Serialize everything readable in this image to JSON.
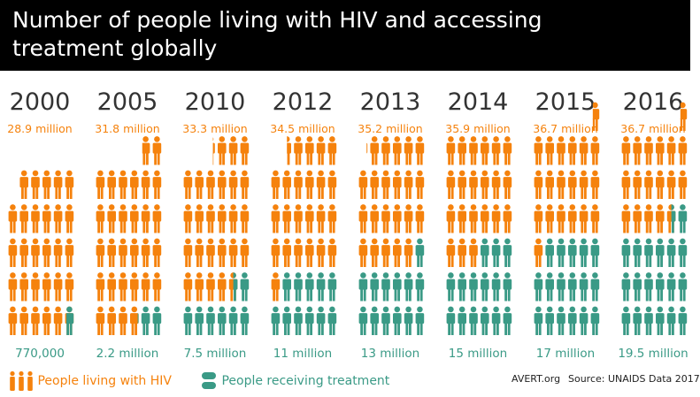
{
  "title": {
    "line1": "Number of people living with HIV and accessing",
    "line2": "treatment globally"
  },
  "chart_data": {
    "type": "pictograph",
    "categories": [
      "2000",
      "2005",
      "2010",
      "2012",
      "2013",
      "2014",
      "2015",
      "2016"
    ],
    "series": [
      {
        "name": "People living with HIV",
        "values": [
          28.9,
          31.8,
          33.3,
          34.5,
          35.2,
          35.9,
          36.7,
          36.7
        ],
        "labels": [
          "28.9 million",
          "31.8 million",
          "33.3 million",
          "34.5 million",
          "35.2 million",
          "35.9 million",
          "36.7 million",
          "36.7 million"
        ],
        "color": "#f5820d"
      },
      {
        "name": "People receiving treatment",
        "values": [
          0.77,
          2.2,
          7.5,
          11,
          13,
          15,
          17,
          19.5
        ],
        "labels": [
          "770,000",
          "2.2 million",
          "7.5 million",
          "11 million",
          "13 million",
          "15 million",
          "17 million",
          "19.5 million"
        ],
        "color": "#3a9a86"
      }
    ]
  },
  "legend": {
    "living": "People living with HIV",
    "treatment": "People receiving treatment"
  },
  "credits": {
    "site": "AVERT.org",
    "source": "Source: UNAIDS Data 2017"
  },
  "colors": {
    "living": "#f5820d",
    "treatment": "#3a9a86",
    "year": "#333333",
    "title_bg": "#000000",
    "title_text": "#ffffff"
  }
}
